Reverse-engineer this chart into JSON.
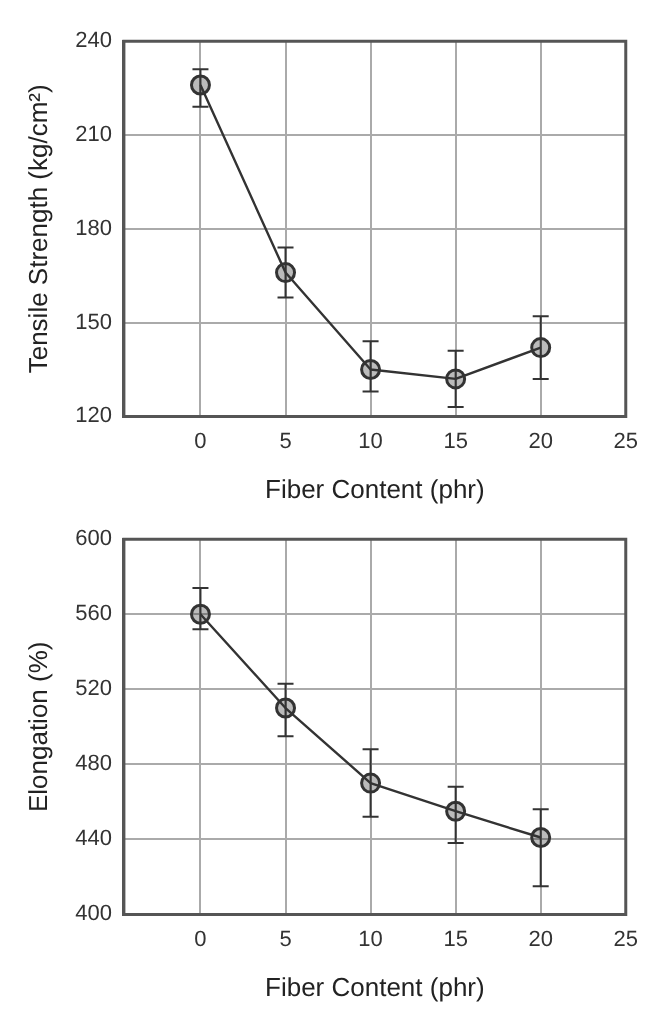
{
  "chart_data": [
    {
      "type": "line",
      "xlabel": "Fiber Content (phr)",
      "ylabel": "Tensile Strength (kg/cm²)",
      "x": [
        0,
        5,
        10,
        15,
        20
      ],
      "values": [
        226,
        166,
        135,
        132,
        142
      ],
      "errors": [
        [
          219,
          231
        ],
        [
          158,
          174
        ],
        [
          128,
          144
        ],
        [
          123,
          141
        ],
        [
          132,
          152
        ]
      ],
      "color": "#333333",
      "xlim": [
        -4.5,
        25
      ],
      "xticks": [
        0,
        5,
        10,
        15,
        20,
        25
      ],
      "ylim": [
        120,
        240
      ],
      "yticks": [
        120,
        150,
        180,
        210,
        240
      ],
      "grid": true,
      "marker": "circle",
      "line_style": "solid"
    },
    {
      "type": "line",
      "xlabel": "Fiber Content (phr)",
      "ylabel": "Elongation (%)",
      "x": [
        0,
        5,
        10,
        15,
        20
      ],
      "values": [
        560,
        510,
        470,
        455,
        441
      ],
      "errors": [
        [
          552,
          574
        ],
        [
          495,
          523
        ],
        [
          452,
          488
        ],
        [
          438,
          468
        ],
        [
          415,
          456
        ]
      ],
      "color": "#333333",
      "xlim": [
        -4.5,
        25
      ],
      "xticks": [
        0,
        5,
        10,
        15,
        20,
        25
      ],
      "ylim": [
        400,
        600
      ],
      "yticks": [
        400,
        440,
        480,
        520,
        560,
        600
      ],
      "grid": true,
      "marker": "circle",
      "line_style": "solid"
    }
  ]
}
